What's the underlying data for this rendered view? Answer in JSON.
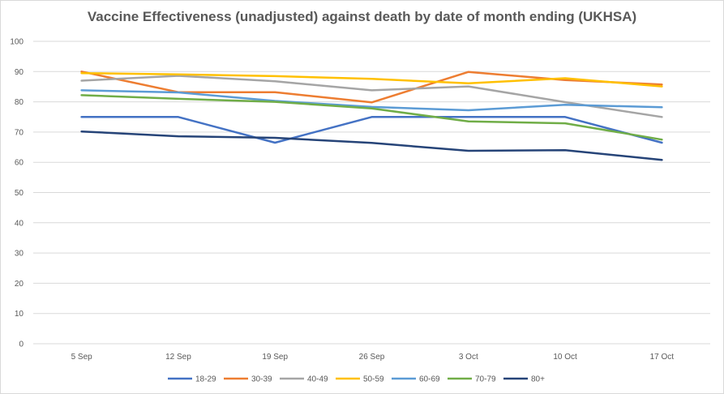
{
  "chart_data": {
    "type": "line",
    "title": "Vaccine Effectiveness (unadjusted) against death by date of month ending (UKHSA)",
    "xlabel": "",
    "ylabel": "",
    "categories": [
      "5 Sep",
      "12 Sep",
      "19 Sep",
      "26 Sep",
      "3 Oct",
      "10 Oct",
      "17 Oct"
    ],
    "ylim": [
      0,
      100
    ],
    "yticks": [
      0,
      10,
      20,
      30,
      40,
      50,
      60,
      70,
      80,
      90,
      100
    ],
    "grid": true,
    "legend_position": "bottom",
    "series": [
      {
        "name": "18-29",
        "color": "#4472c4",
        "values": [
          75,
          75,
          66.5,
          75,
          75,
          75,
          66.5
        ]
      },
      {
        "name": "30-39",
        "color": "#ed7d31",
        "values": [
          90,
          83.2,
          83.2,
          79.8,
          89.9,
          87.2,
          85.7
        ]
      },
      {
        "name": "40-49",
        "color": "#a5a5a5",
        "values": [
          87,
          88.6,
          86.8,
          83.8,
          85.1,
          79.9,
          75
        ]
      },
      {
        "name": "50-59",
        "color": "#ffc000",
        "values": [
          89.5,
          89.1,
          88.5,
          87.6,
          86.1,
          87.8,
          85.1
        ]
      },
      {
        "name": "60-69",
        "color": "#5b9bd5",
        "values": [
          83.8,
          83.1,
          80.3,
          78.3,
          77.2,
          79,
          78.2
        ]
      },
      {
        "name": "70-79",
        "color": "#70ad47",
        "values": [
          82.2,
          81,
          80,
          77.8,
          73.5,
          72.9,
          67.5
        ]
      },
      {
        "name": "80+",
        "color": "#264478",
        "values": [
          70.2,
          68.6,
          68.1,
          66.4,
          63.8,
          64,
          60.8
        ]
      }
    ]
  }
}
